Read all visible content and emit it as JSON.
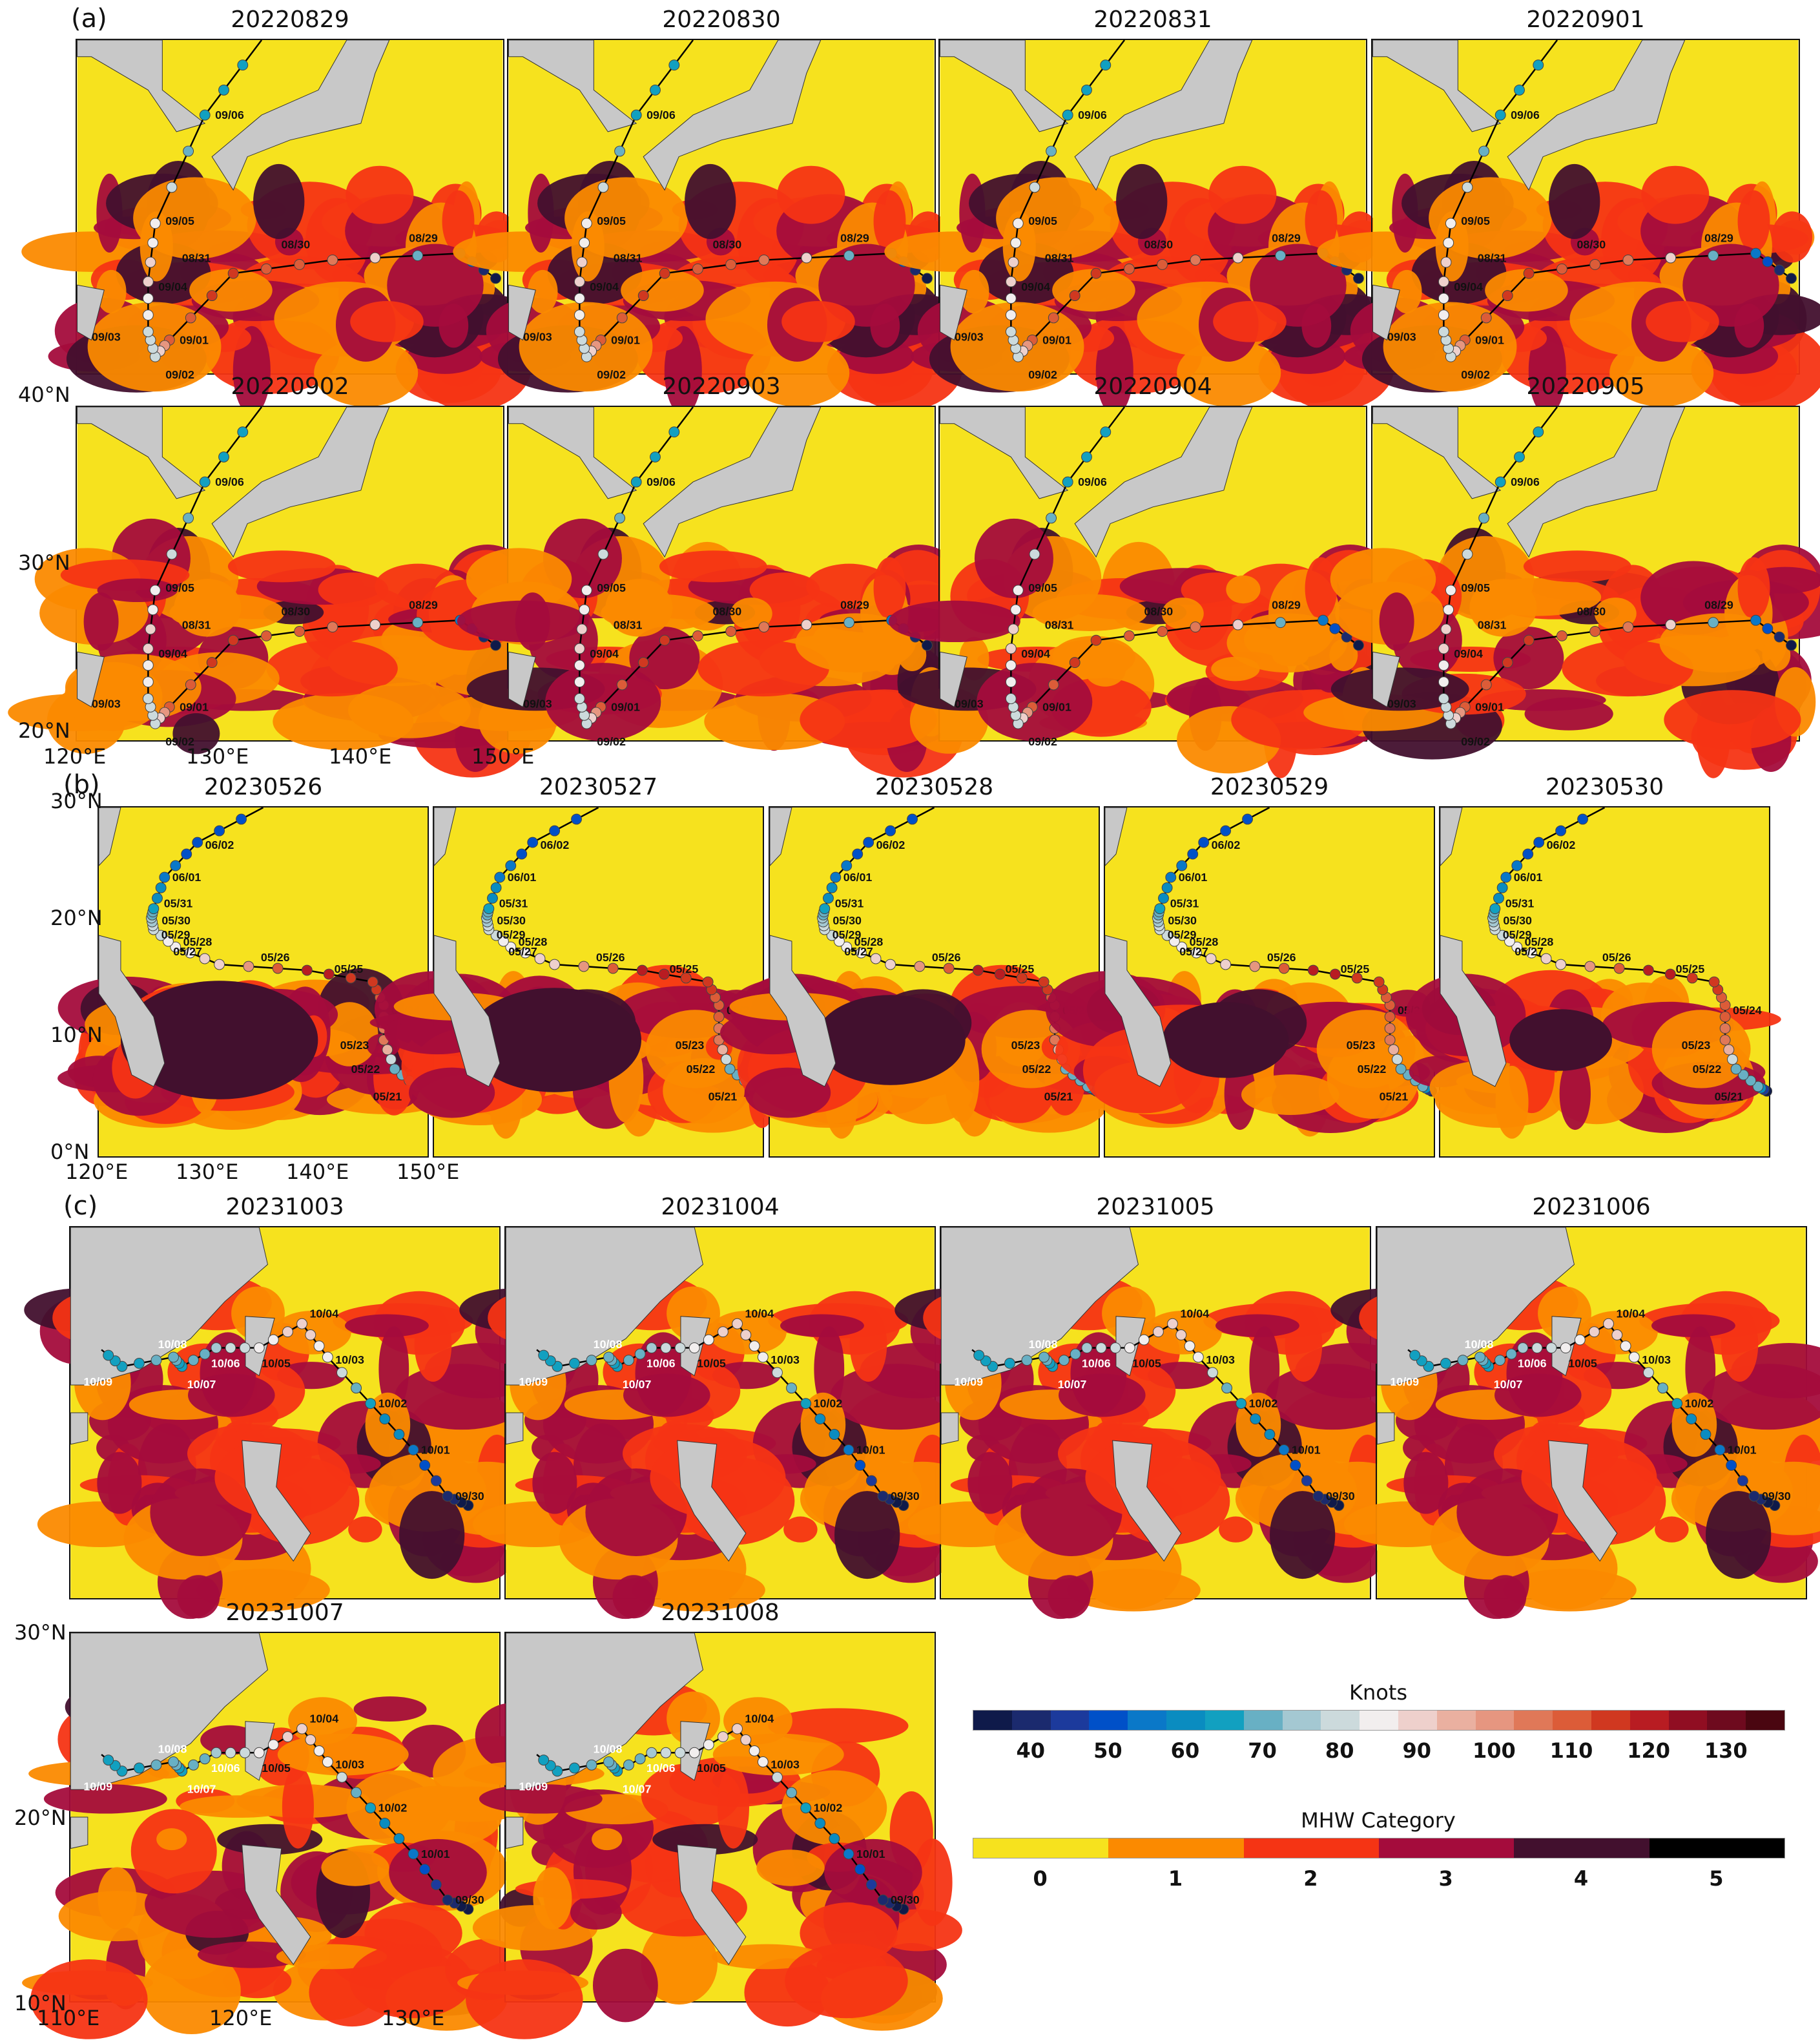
{
  "panel_a": {
    "label": "(a)",
    "dates": [
      "20220829",
      "20220830",
      "20220831",
      "20220901",
      "20220902",
      "20220903",
      "20220904",
      "20220905"
    ],
    "lon_ticks": [
      "120°E",
      "130°E",
      "140°E",
      "150°E"
    ],
    "lat_ticks": [
      "20°N",
      "30°N",
      "40°N"
    ],
    "track_labels": [
      "08/29",
      "08/30",
      "08/31",
      "09/01",
      "09/02",
      "09/03",
      "09/04",
      "09/05",
      "09/06"
    ]
  },
  "panel_b": {
    "label": "(b)",
    "dates": [
      "20230526",
      "20230527",
      "20230528",
      "20230529",
      "20230530"
    ],
    "lon_ticks": [
      "120°E",
      "130°E",
      "140°E",
      "150°E"
    ],
    "lat_ticks": [
      "0°N",
      "10°N",
      "20°N",
      "30°N"
    ],
    "track_labels": [
      "05/21",
      "05/22",
      "05/23",
      "05/24",
      "05/25",
      "05/26",
      "05/27",
      "05/28",
      "05/29",
      "05/30",
      "05/31",
      "06/01",
      "06/02"
    ]
  },
  "panel_c": {
    "label": "(c)",
    "dates": [
      "20231003",
      "20231004",
      "20231005",
      "20231006",
      "20231007",
      "20231008"
    ],
    "lon_ticks": [
      "110°E",
      "120°E",
      "130°E"
    ],
    "lat_ticks": [
      "10°N",
      "20°N",
      "30°N"
    ],
    "track_labels": [
      "09/30",
      "10/01",
      "10/02",
      "10/03",
      "10/04",
      "10/05",
      "10/06",
      "10/07",
      "10/08",
      "10/09"
    ]
  },
  "legend_knots": {
    "title": "Knots",
    "ticks": [
      "40",
      "50",
      "60",
      "70",
      "80",
      "90",
      "100",
      "110",
      "120",
      "130"
    ],
    "colors": [
      "#0f1a4a",
      "#1b2a6e",
      "#1c3a9c",
      "#0050c8",
      "#0a78c8",
      "#0a8cc0",
      "#12a0c0",
      "#68b0c4",
      "#a4c8d2",
      "#ccdadc",
      "#f2eeee",
      "#eed0cc",
      "#eab0a0",
      "#e69680",
      "#e07858",
      "#dc5c38",
      "#d03820",
      "#b81c22",
      "#900e22",
      "#6e0a1e",
      "#4a0610"
    ]
  },
  "legend_mhw": {
    "title": "MHW Category",
    "ticks": [
      "0",
      "1",
      "2",
      "3",
      "4",
      "5"
    ],
    "colors": [
      "#f6e21e",
      "#fb8a00",
      "#f53414",
      "#a40c3c",
      "#42102e",
      "#000000"
    ]
  },
  "colors": {
    "land": "#c8c8c8",
    "track_line": "#000000"
  }
}
